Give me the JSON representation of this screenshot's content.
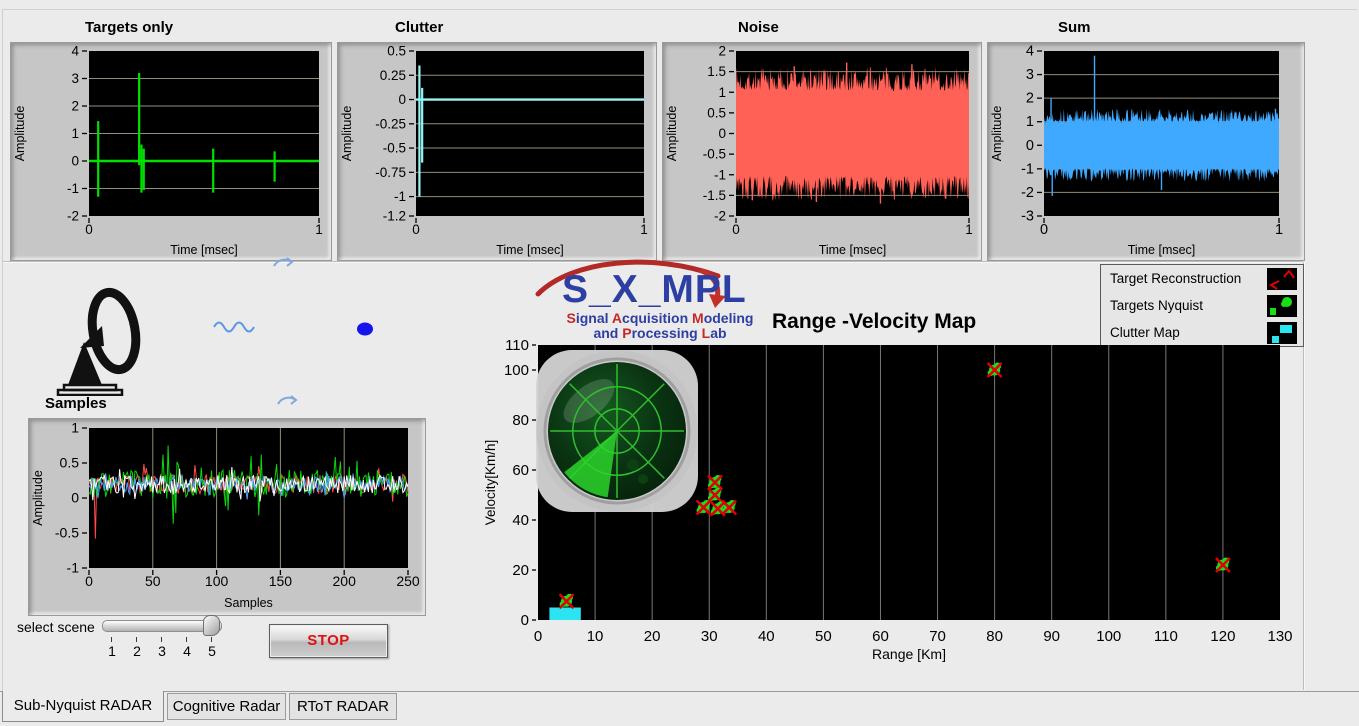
{
  "page": {
    "background": "#ebebeb"
  },
  "top_charts": [
    {
      "title": "Targets only",
      "xlabel": "Time [msec]",
      "ylabel": "Amplitude",
      "color": "#00e100",
      "chart_data": {
        "type": "line-impulse",
        "x_range": [
          0,
          1
        ],
        "y_range": [
          -2,
          4
        ],
        "yticks": [
          4,
          3,
          2,
          1,
          0,
          -1,
          -2
        ],
        "xticks": [
          0,
          1
        ],
        "baseline": 0,
        "spikes": [
          {
            "x": 0.04,
            "up": 1.45,
            "down": -1.3
          },
          {
            "x": 0.218,
            "up": 3.2,
            "down": -0.15
          },
          {
            "x": 0.228,
            "up": 0.6,
            "down": -1.15
          },
          {
            "x": 0.238,
            "up": 0.45,
            "down": -1.05
          },
          {
            "x": 0.54,
            "up": 0.45,
            "down": -1.15
          },
          {
            "x": 0.807,
            "up": 0.35,
            "down": -0.75
          }
        ]
      }
    },
    {
      "title": "Clutter",
      "xlabel": "Time [msec]",
      "ylabel": "Amplitude",
      "color": "#97f2f2",
      "chart_data": {
        "type": "line-impulse",
        "x_range": [
          0,
          1
        ],
        "y_range": [
          -1.2,
          0.5
        ],
        "yticks": [
          0.5,
          0.25,
          0,
          -0.25,
          -0.5,
          -0.75,
          -1,
          -1.2
        ],
        "xticks": [
          0,
          1
        ],
        "baseline": 0,
        "spikes": [
          {
            "x": 0.015,
            "up": 0.35,
            "down": -1.0
          },
          {
            "x": 0.027,
            "up": 0.12,
            "down": -0.65
          }
        ]
      }
    },
    {
      "title": "Noise",
      "xlabel": "Time [msec]",
      "ylabel": "Amplitude",
      "color": "#ff6157",
      "chart_data": {
        "type": "noise-band",
        "x_range": [
          0,
          1
        ],
        "y_range": [
          -2,
          2
        ],
        "yticks": [
          2,
          1.5,
          1,
          0.5,
          0,
          -0.5,
          -1,
          -1.5,
          -2
        ],
        "xticks": [
          0,
          1
        ],
        "band_mean": 1.12,
        "band_peak": 1.42,
        "seed": 7,
        "outliers": [
          {
            "x": 0.07,
            "y": -1.62
          },
          {
            "x": 0.25,
            "y": 1.63
          },
          {
            "x": 0.345,
            "y": -1.66
          },
          {
            "x": 0.475,
            "y": 1.72
          },
          {
            "x": 0.62,
            "y": -1.7
          },
          {
            "x": 0.755,
            "y": 1.68
          },
          {
            "x": 0.9,
            "y": -1.58
          }
        ]
      }
    },
    {
      "title": "Sum",
      "xlabel": "Time [msec]",
      "ylabel": "Amplitude",
      "color": "#3fa9ff",
      "chart_data": {
        "type": "noise-band",
        "x_range": [
          0,
          1
        ],
        "y_range": [
          -3,
          4
        ],
        "yticks": [
          4,
          3,
          2,
          1,
          0,
          -1,
          -2,
          -3
        ],
        "xticks": [
          0,
          1
        ],
        "band_mean": 1.05,
        "band_peak": 1.35,
        "seed": 13,
        "outliers": [
          {
            "x": 0.03,
            "y": 2.0
          },
          {
            "x": 0.035,
            "y": -2.15
          },
          {
            "x": 0.215,
            "y": 3.8
          },
          {
            "x": 0.5,
            "y": -1.9
          },
          {
            "x": 0.985,
            "y": 1.55
          }
        ]
      }
    }
  ],
  "samples_chart": {
    "heading": "Samples",
    "xlabel": "Samples",
    "ylabel": "Amplitude",
    "chart_data": {
      "type": "multi-noise",
      "x_range": [
        0,
        250
      ],
      "y_range": [
        -1,
        1
      ],
      "yticks": [
        1,
        0.5,
        0,
        -0.5,
        -1
      ],
      "xticks": [
        0,
        50,
        100,
        150,
        200,
        250
      ],
      "mean": 0.2,
      "series": [
        {
          "name": "channel-red",
          "color": "#ff4a4a",
          "seed": 3,
          "jitter": 0.14
        },
        {
          "name": "channel-green",
          "color": "#0ad60a",
          "seed": 9,
          "jitter": 0.2
        },
        {
          "name": "channel-blue",
          "color": "#4fa0ff",
          "seed": 21,
          "jitter": 0.12
        },
        {
          "name": "channel-white",
          "color": "#ffffff",
          "seed": 31,
          "jitter": 0.13
        }
      ],
      "features": [
        {
          "series": 0,
          "x": 5,
          "y": -0.58
        },
        {
          "series": 1,
          "x": 58,
          "y": 0.62
        },
        {
          "series": 1,
          "x": 62,
          "y": 0.75
        },
        {
          "series": 1,
          "x": 66,
          "y": -0.37
        },
        {
          "series": 1,
          "x": 133,
          "y": -0.25
        },
        {
          "series": 1,
          "x": 135,
          "y": 0.62
        }
      ]
    }
  },
  "rv_map": {
    "title": "Range -Velocity Map",
    "xlabel": "Range [Km]",
    "ylabel": "Velocity[Km/h]",
    "chart_data": {
      "type": "scatter",
      "x_range": [
        0,
        130
      ],
      "y_range": [
        0,
        110
      ],
      "xticks": [
        0,
        10,
        20,
        30,
        40,
        50,
        60,
        70,
        80,
        90,
        100,
        110,
        120,
        130
      ],
      "yticks": [
        0,
        20,
        40,
        60,
        80,
        100,
        110
      ],
      "clutter_patches": [
        {
          "x": 2,
          "y": 0,
          "w": 5.5,
          "h": 5
        }
      ],
      "targets": [
        {
          "range": 5,
          "velocity": 7.5
        },
        {
          "range": 31,
          "velocity": 55
        },
        {
          "range": 31,
          "velocity": 50
        },
        {
          "range": 29,
          "velocity": 45
        },
        {
          "range": 31.5,
          "velocity": 44.5
        },
        {
          "range": 33.5,
          "velocity": 45
        },
        {
          "range": 80,
          "velocity": 100
        },
        {
          "range": 120,
          "velocity": 22
        }
      ],
      "marker_colors": {
        "cross": "#e00000",
        "blob": "#1ae01a",
        "clutter": "#2ae4f2"
      }
    }
  },
  "legend": {
    "items": [
      {
        "label": "Target Reconstruction",
        "icon": "red-cross-markers"
      },
      {
        "label": "Targets Nyquist",
        "icon": "green-blobs"
      },
      {
        "label": "Clutter Map",
        "icon": "cyan-squares"
      }
    ]
  },
  "logo": {
    "acronym": "S_X_MPL",
    "subtitle1": [
      [
        "S",
        "#c62828"
      ],
      [
        "ignal ",
        "#2d3fa3"
      ],
      [
        "A",
        "#c62828"
      ],
      [
        "cquisition ",
        "#2d3fa3"
      ],
      [
        "M",
        "#c62828"
      ],
      [
        "odeling",
        "#2d3fa3"
      ]
    ],
    "subtitle2": [
      [
        "and ",
        "#2d3fa3"
      ],
      [
        "P",
        "#c62828"
      ],
      [
        "rocessing ",
        "#2d3fa3"
      ],
      [
        "L",
        "#c62828"
      ],
      [
        "ab",
        "#2d3fa3"
      ]
    ],
    "accent_blue": "#2d3fa3",
    "accent_red": "#c62828"
  },
  "controls": {
    "select_scene_label": "select scene",
    "scene_ticks": [
      "1",
      "2",
      "3",
      "4",
      "5"
    ],
    "scene_value": 5,
    "stop_label": "STOP",
    "stop_color": "#e01010"
  },
  "tabs": {
    "items": [
      {
        "label": "Sub-Nyquist RADAR",
        "active": true
      },
      {
        "label": "Cognitive Radar",
        "active": false
      },
      {
        "label": "RToT RADAR",
        "active": false
      }
    ]
  }
}
